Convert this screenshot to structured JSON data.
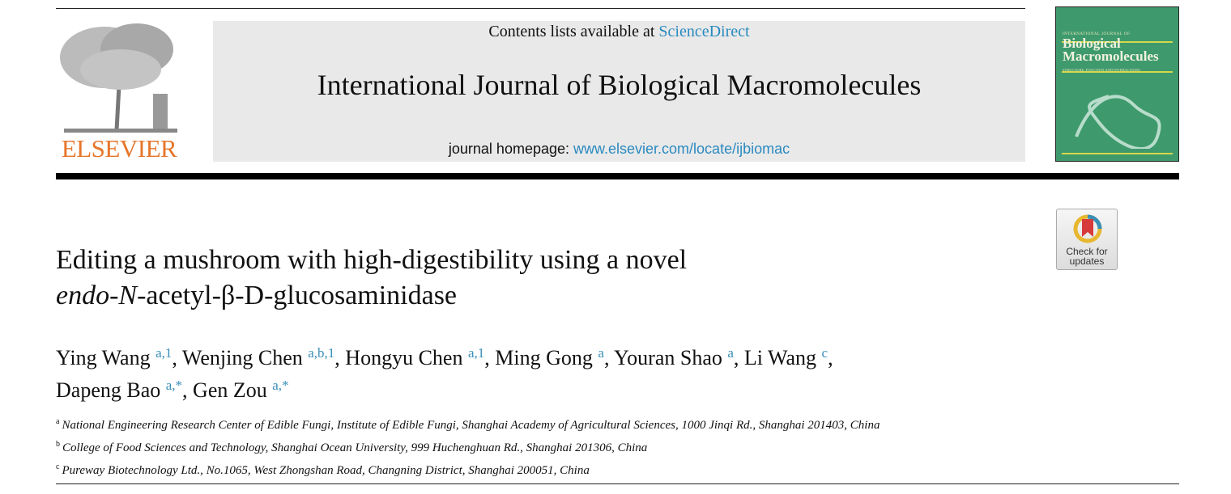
{
  "header": {
    "contents_prefix": "Contents lists available at ",
    "contents_link": "ScienceDirect",
    "journal_title": "International Journal of Biological Macromolecules",
    "homepage_prefix": "journal homepage: ",
    "homepage_link": "www.elsevier.com/locate/ijbiomac",
    "publisher": "ELSEVIER",
    "cover": {
      "small": "INTERNATIONAL JOURNAL OF",
      "title_1": "Biological",
      "title_2": "Macromolecules",
      "subtitle": "STRUCTURE, FUNCTION AND INTERACTIONS",
      "bg_color": "#3e9a6c"
    },
    "link_color": "#2a8ac0",
    "publisher_color": "#e6762b"
  },
  "check_updates": {
    "line1": "Check for",
    "line2": "updates"
  },
  "article": {
    "title_line1": "Editing a mushroom with high-digestibility using a novel",
    "title_italic1": "endo",
    "title_dash": "-",
    "title_italic2": "N",
    "title_rest": "-acetyl-β-D-glucosaminidase",
    "authors": [
      {
        "name": "Ying Wang",
        "sup": "a,1"
      },
      {
        "name": "Wenjing Chen",
        "sup": "a,b,1"
      },
      {
        "name": "Hongyu Chen",
        "sup": "a,1"
      },
      {
        "name": "Ming Gong",
        "sup": "a"
      },
      {
        "name": "Youran Shao",
        "sup": "a"
      },
      {
        "name": "Li Wang",
        "sup": "c"
      },
      {
        "name": "Dapeng Bao",
        "sup": "a,*"
      },
      {
        "name": "Gen Zou",
        "sup": "a,*"
      }
    ],
    "affiliations": [
      {
        "key": "a",
        "text": "National Engineering Research Center of Edible Fungi, Institute of Edible Fungi, Shanghai Academy of Agricultural Sciences, 1000 Jinqi Rd., Shanghai 201403, China"
      },
      {
        "key": "b",
        "text": "College of Food Sciences and Technology, Shanghai Ocean University, 999 Huchenghuan Rd., Shanghai 201306, China"
      },
      {
        "key": "c",
        "text": "Pureway Biotechnology Ltd., No.1065, West Zhongshan Road, Changning District, Shanghai 200051, China"
      }
    ]
  }
}
